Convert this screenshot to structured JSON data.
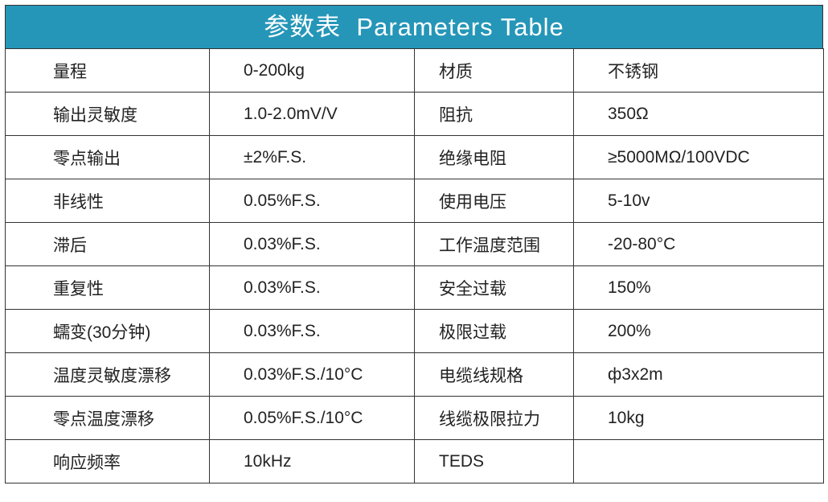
{
  "header": {
    "title": "参数表  Parameters Table"
  },
  "table": {
    "rows": [
      [
        "量程",
        "0-200kg",
        "材质",
        "不锈钢"
      ],
      [
        "输出灵敏度",
        "1.0-2.0mV/V",
        "阻抗",
        "350Ω"
      ],
      [
        "零点输出",
        "±2%F.S.",
        "绝缘电阻",
        "≥5000MΩ/100VDC"
      ],
      [
        "非线性",
        "0.05%F.S.",
        "使用电压",
        "5-10v"
      ],
      [
        "滞后",
        "0.03%F.S.",
        "工作温度范围",
        "-20-80°C"
      ],
      [
        "重复性",
        "0.03%F.S.",
        "安全过载",
        "150%"
      ],
      [
        "蠕变(30分钟)",
        "0.03%F.S.",
        "极限过载",
        "200%"
      ],
      [
        "温度灵敏度漂移",
        "0.03%F.S./10°C",
        "电缆线规格",
        "ф3x2m"
      ],
      [
        "零点温度漂移",
        "0.05%F.S./10°C",
        "线缆极限拉力",
        "10kg"
      ],
      [
        "响应频率",
        "10kHz",
        "TEDS"
      ]
    ]
  }
}
